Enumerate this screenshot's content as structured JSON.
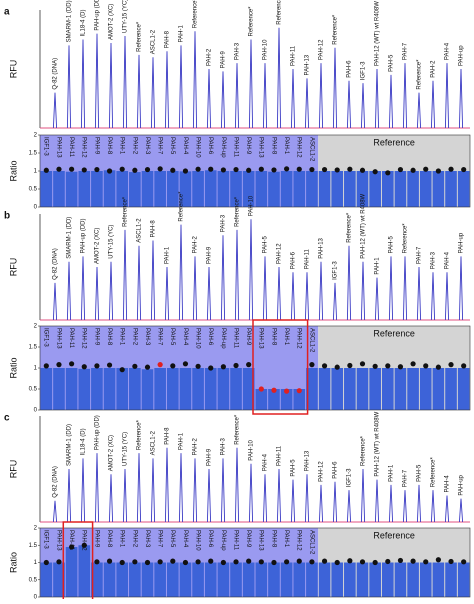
{
  "chart_data": [
    {
      "type": "peaks",
      "panel": "a",
      "ylabel": "RFU",
      "color": "#3b3bc4",
      "baseline_color": "#e05080",
      "ylim": [
        0,
        1
      ],
      "categories": [
        "Q-82 (DNA)",
        "SMARM-1 (DD)",
        "IL18-4 (D)",
        "PAH-up (DD)",
        "AMOT-2 (XC)",
        "UTY-15 (YC)",
        "Reference*",
        "ASCL1-2",
        "PAH-8",
        "PAH-1",
        "Reference*",
        "PAH-2",
        "PAH-9",
        "PAH-3",
        "Reference*",
        "PAH-10",
        "Reference*",
        "PAH-11",
        "PAH-13",
        "PAH-12",
        "Reference*",
        "PAH-6",
        "IGF1-3",
        "PAH-12 (WT) wt R408W",
        "PAH-5",
        "PAH-7",
        "Reference*",
        "PAH-2",
        "PAH-4",
        "PAH-up"
      ],
      "values": [
        0.3,
        0.7,
        0.75,
        0.8,
        0.72,
        0.78,
        0.62,
        0.6,
        0.65,
        0.7,
        0.82,
        0.5,
        0.48,
        0.55,
        0.75,
        0.55,
        0.85,
        0.5,
        0.42,
        0.55,
        0.68,
        0.4,
        0.38,
        0.5,
        0.45,
        0.55,
        0.3,
        0.4,
        0.55,
        0.5
      ]
    },
    {
      "type": "ratio",
      "ylabel": "Ratio",
      "region_label": "Reference",
      "bar_color": "#3d63d8",
      "point_color": "#111111",
      "label_bg": "#9a9af0",
      "reference_bg": "#d4d4d4",
      "ylim": [
        0,
        2
      ],
      "yticks": [
        0,
        0.5,
        1,
        1.5,
        2
      ],
      "categories": [
        "IGF1-3",
        "PAH-13",
        "PAH-11",
        "PAH-12",
        "PAH-9",
        "PAH-8",
        "PAH-1",
        "PAH-2",
        "PAH-3",
        "PAH-7",
        "PAH-5",
        "PAH-4",
        "PAH-10",
        "PAH-6",
        "PAH-up",
        "PAH-11",
        "PAH-9",
        "PAH-13",
        "PAH-8",
        "PAH-1",
        "PAH-12",
        "ASCL1-2",
        null,
        null,
        null,
        null,
        null,
        null,
        null,
        null,
        null,
        null,
        null,
        null
      ],
      "values": [
        1,
        1,
        0.98,
        1,
        1,
        1.02,
        1,
        0.97,
        1,
        1,
        1,
        0.99,
        1,
        1.02,
        1,
        1,
        1,
        1,
        0.98,
        1,
        1,
        1,
        1,
        1,
        1,
        1,
        1,
        1,
        1,
        1,
        1,
        1,
        1,
        1
      ],
      "points": [
        1.02,
        1.05,
        1.05,
        1.03,
        1.04,
        1,
        1.05,
        1.02,
        1.04,
        1.06,
        1.02,
        1,
        1.05,
        1.05,
        1.03,
        1.04,
        1.02,
        1.05,
        1.03,
        1.06,
        1.05,
        1.04,
        1.04,
        1.03,
        1.05,
        1.02,
        0.98,
        0.95,
        1.04,
        1.02,
        1.05,
        1,
        1.05,
        1.04
      ]
    },
    {
      "type": "peaks",
      "panel": "b",
      "ylabel": "RFU",
      "color": "#3b3bc4",
      "baseline_color": "#e05080",
      "ylim": [
        0,
        1
      ],
      "categories": [
        "Q-82 (DNA)",
        "SMARM-1 (DD)",
        "PAH-up (DD)",
        "AMOT-2 (XC)",
        "UTY-15 (YC)",
        "Reference*",
        "ASCL1-2",
        "PAH-8",
        "PAH-1",
        "Reference*",
        "PAH-2",
        "PAH-9",
        "PAH-3",
        "Reference*",
        "PAH-10",
        "PAH-5",
        "PAH-12",
        "PAH-6",
        "PAH-11",
        "PAH-13",
        "IGF1-3",
        "Reference*",
        "PAH-12 (WT) wt R408W",
        "PAH-1",
        "PAH-5",
        "Reference*",
        "PAH-7",
        "PAH-3",
        "PAH-4",
        "PAH-up"
      ],
      "values": [
        0.35,
        0.55,
        0.6,
        0.5,
        0.55,
        0.85,
        0.7,
        0.75,
        0.5,
        0.9,
        0.6,
        0.5,
        0.8,
        0.85,
        0.95,
        0.6,
        0.5,
        0.45,
        0.45,
        0.55,
        0.35,
        0.7,
        0.55,
        0.4,
        0.6,
        0.6,
        0.5,
        0.45,
        0.45,
        0.6
      ]
    },
    {
      "type": "ratio",
      "ylabel": "Ratio",
      "region_label": "Reference",
      "bar_color": "#3d63d8",
      "point_color": "#111111",
      "label_bg": "#9a9af0",
      "reference_bg": "#d4d4d4",
      "ylim": [
        0,
        2
      ],
      "yticks": [
        0,
        0.5,
        1,
        1.5,
        2
      ],
      "categories": [
        "IGF1-3",
        "PAH-13",
        "PAH-11",
        "PAH-12",
        "PAH-9",
        "PAH-8",
        "PAH-1",
        "PAH-2",
        "PAH-3",
        "PAH-7",
        "PAH-5",
        "PAH-4",
        "PAH-10",
        "PAH-6",
        "PAH-up",
        "PAH-11",
        "PAH-9",
        "PAH-13",
        "PAH-8",
        "PAH-1",
        "PAH-12",
        "ASCL1-2",
        null,
        null,
        null,
        null,
        null,
        null,
        null,
        null,
        null,
        null,
        null,
        null
      ],
      "values": [
        1,
        1,
        1,
        0.98,
        1,
        1,
        1,
        1,
        0.97,
        1,
        1,
        1,
        1,
        1,
        1,
        1,
        1,
        0.5,
        0.5,
        0.5,
        0.5,
        1,
        1,
        1,
        1,
        1,
        1,
        1,
        1,
        1,
        1,
        1,
        1,
        1
      ],
      "points": [
        1.05,
        1.08,
        1.1,
        1.03,
        1.05,
        1.07,
        0.96,
        1.04,
        1.02,
        1.08,
        1.05,
        1.1,
        1.04,
        1,
        1.03,
        1.06,
        1.08,
        0.5,
        0.47,
        0.45,
        0.46,
        1.08,
        1.05,
        1.02,
        1.06,
        1.1,
        1.04,
        1.05,
        1.03,
        1.1,
        1.05,
        1.02,
        1.08,
        1.05
      ],
      "point_colors": [
        "#111111",
        "#111111",
        "#111111",
        "#111111",
        "#111111",
        "#111111",
        "#111111",
        "#111111",
        "#111111",
        "#e02020",
        "#111111",
        "#111111",
        "#111111",
        "#111111",
        "#111111",
        "#111111",
        "#111111",
        "#e02020",
        "#e02020",
        "#e02020",
        "#e02020",
        "#111111",
        "#111111",
        "#111111",
        "#111111",
        "#111111",
        "#111111",
        "#111111",
        "#111111",
        "#111111",
        "#111111",
        "#111111",
        "#111111",
        "#111111"
      ]
    },
    {
      "type": "peaks",
      "panel": "c",
      "ylabel": "RFU",
      "color": "#3b3bc4",
      "baseline_color": "#e05080",
      "ylim": [
        0,
        1
      ],
      "categories": [
        "Q-82 (DNA)",
        "SMARM-1 (DD)",
        "IL18-4 (D)",
        "PAH-up (DD)",
        "AMOT-2 (XC)",
        "UTY-15 (YC)",
        "Reference*",
        "ASCL1-2",
        "PAH-8",
        "PAH-1",
        "PAH-2",
        "PAH-9",
        "PAH-3",
        "Reference*",
        "PAH-10",
        "PAH-4",
        "PAH-11",
        "PAH-5",
        "PAH-13",
        "PAH-12",
        "PAH-6",
        "IGF1-3",
        "Reference*",
        "PAH-12 (WT) wt R408W",
        "PAH-1",
        "PAH-7",
        "PAH-5",
        "Reference*",
        "PAH-4",
        "PAH-up"
      ],
      "values": [
        0.2,
        0.5,
        0.6,
        0.65,
        0.45,
        0.5,
        0.65,
        0.6,
        0.7,
        0.65,
        0.6,
        0.5,
        0.6,
        0.7,
        0.55,
        0.45,
        0.5,
        0.4,
        0.45,
        0.35,
        0.38,
        0.3,
        0.5,
        0.4,
        0.35,
        0.3,
        0.35,
        0.3,
        0.25,
        0.22
      ]
    },
    {
      "type": "ratio",
      "ylabel": "Ratio",
      "region_label": "Reference",
      "bar_color": "#3d63d8",
      "point_color": "#111111",
      "label_bg": "#9a9af0",
      "reference_bg": "#d4d4d4",
      "ylim": [
        0,
        2
      ],
      "yticks": [
        0,
        0.5,
        1,
        1.5,
        2
      ],
      "categories": [
        "IGF1-3",
        "PAH-13",
        "PAH-11",
        "PAH-12",
        "PAH-9",
        "PAH-8",
        "PAH-1",
        "PAH-2",
        "PAH-3",
        "PAH-7",
        "PAH-5",
        "PAH-4",
        "PAH-10",
        "PAH-6",
        "PAH-up",
        "PAH-11",
        "PAH-9",
        "PAH-13",
        "PAH-8",
        "PAH-1",
        "PAH-12",
        "ASCL1-2",
        null,
        null,
        null,
        null,
        null,
        null,
        null,
        null,
        null,
        null,
        null,
        null
      ],
      "values": [
        1,
        1,
        1.45,
        1.5,
        1,
        1,
        1,
        1,
        1,
        1,
        1,
        1,
        1,
        1,
        1,
        1,
        1,
        1,
        1,
        1,
        1,
        1,
        1,
        1,
        1,
        1,
        1,
        1,
        1,
        1,
        1,
        1,
        1,
        1
      ],
      "points": [
        1,
        1.02,
        1.45,
        1.5,
        1.02,
        1.04,
        1,
        1.02,
        1,
        1.02,
        1.04,
        1,
        1.02,
        1.04,
        1,
        1.02,
        1.04,
        1.02,
        1,
        1.02,
        1.04,
        1.02,
        1.04,
        1,
        1.05,
        1.02,
        1,
        1.03,
        1.06,
        1.04,
        1.02,
        1.08,
        1.03,
        1.02
      ]
    }
  ]
}
